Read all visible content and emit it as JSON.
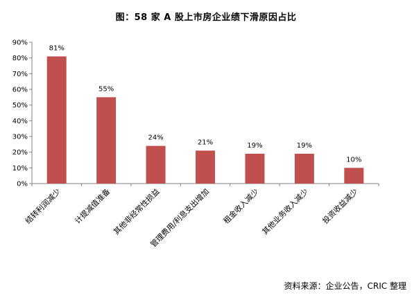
{
  "chart_data": {
    "type": "bar",
    "title": "图：58 家 A 股上市房企业绩下滑原因占比",
    "categories": [
      "结转利润减少",
      "计提减值准备",
      "其他非经常性损益",
      "管理费用/利息支出增加",
      "租金收入减少",
      "其他业务收入减少",
      "投资收益减少"
    ],
    "values": [
      81,
      55,
      24,
      21,
      19,
      19,
      10
    ],
    "data_labels": [
      "81%",
      "55%",
      "24%",
      "21%",
      "19%",
      "19%",
      "10%"
    ],
    "y_ticks": [
      "0%",
      "10%",
      "20%",
      "30%",
      "40%",
      "50%",
      "60%",
      "70%",
      "80%",
      "90%"
    ],
    "ylim": [
      0,
      90
    ],
    "xlabel": "",
    "ylabel": "",
    "grid": false,
    "bar_color": "#C0504D"
  },
  "source_note": "资料来源：企业公告，CRIC 整理"
}
